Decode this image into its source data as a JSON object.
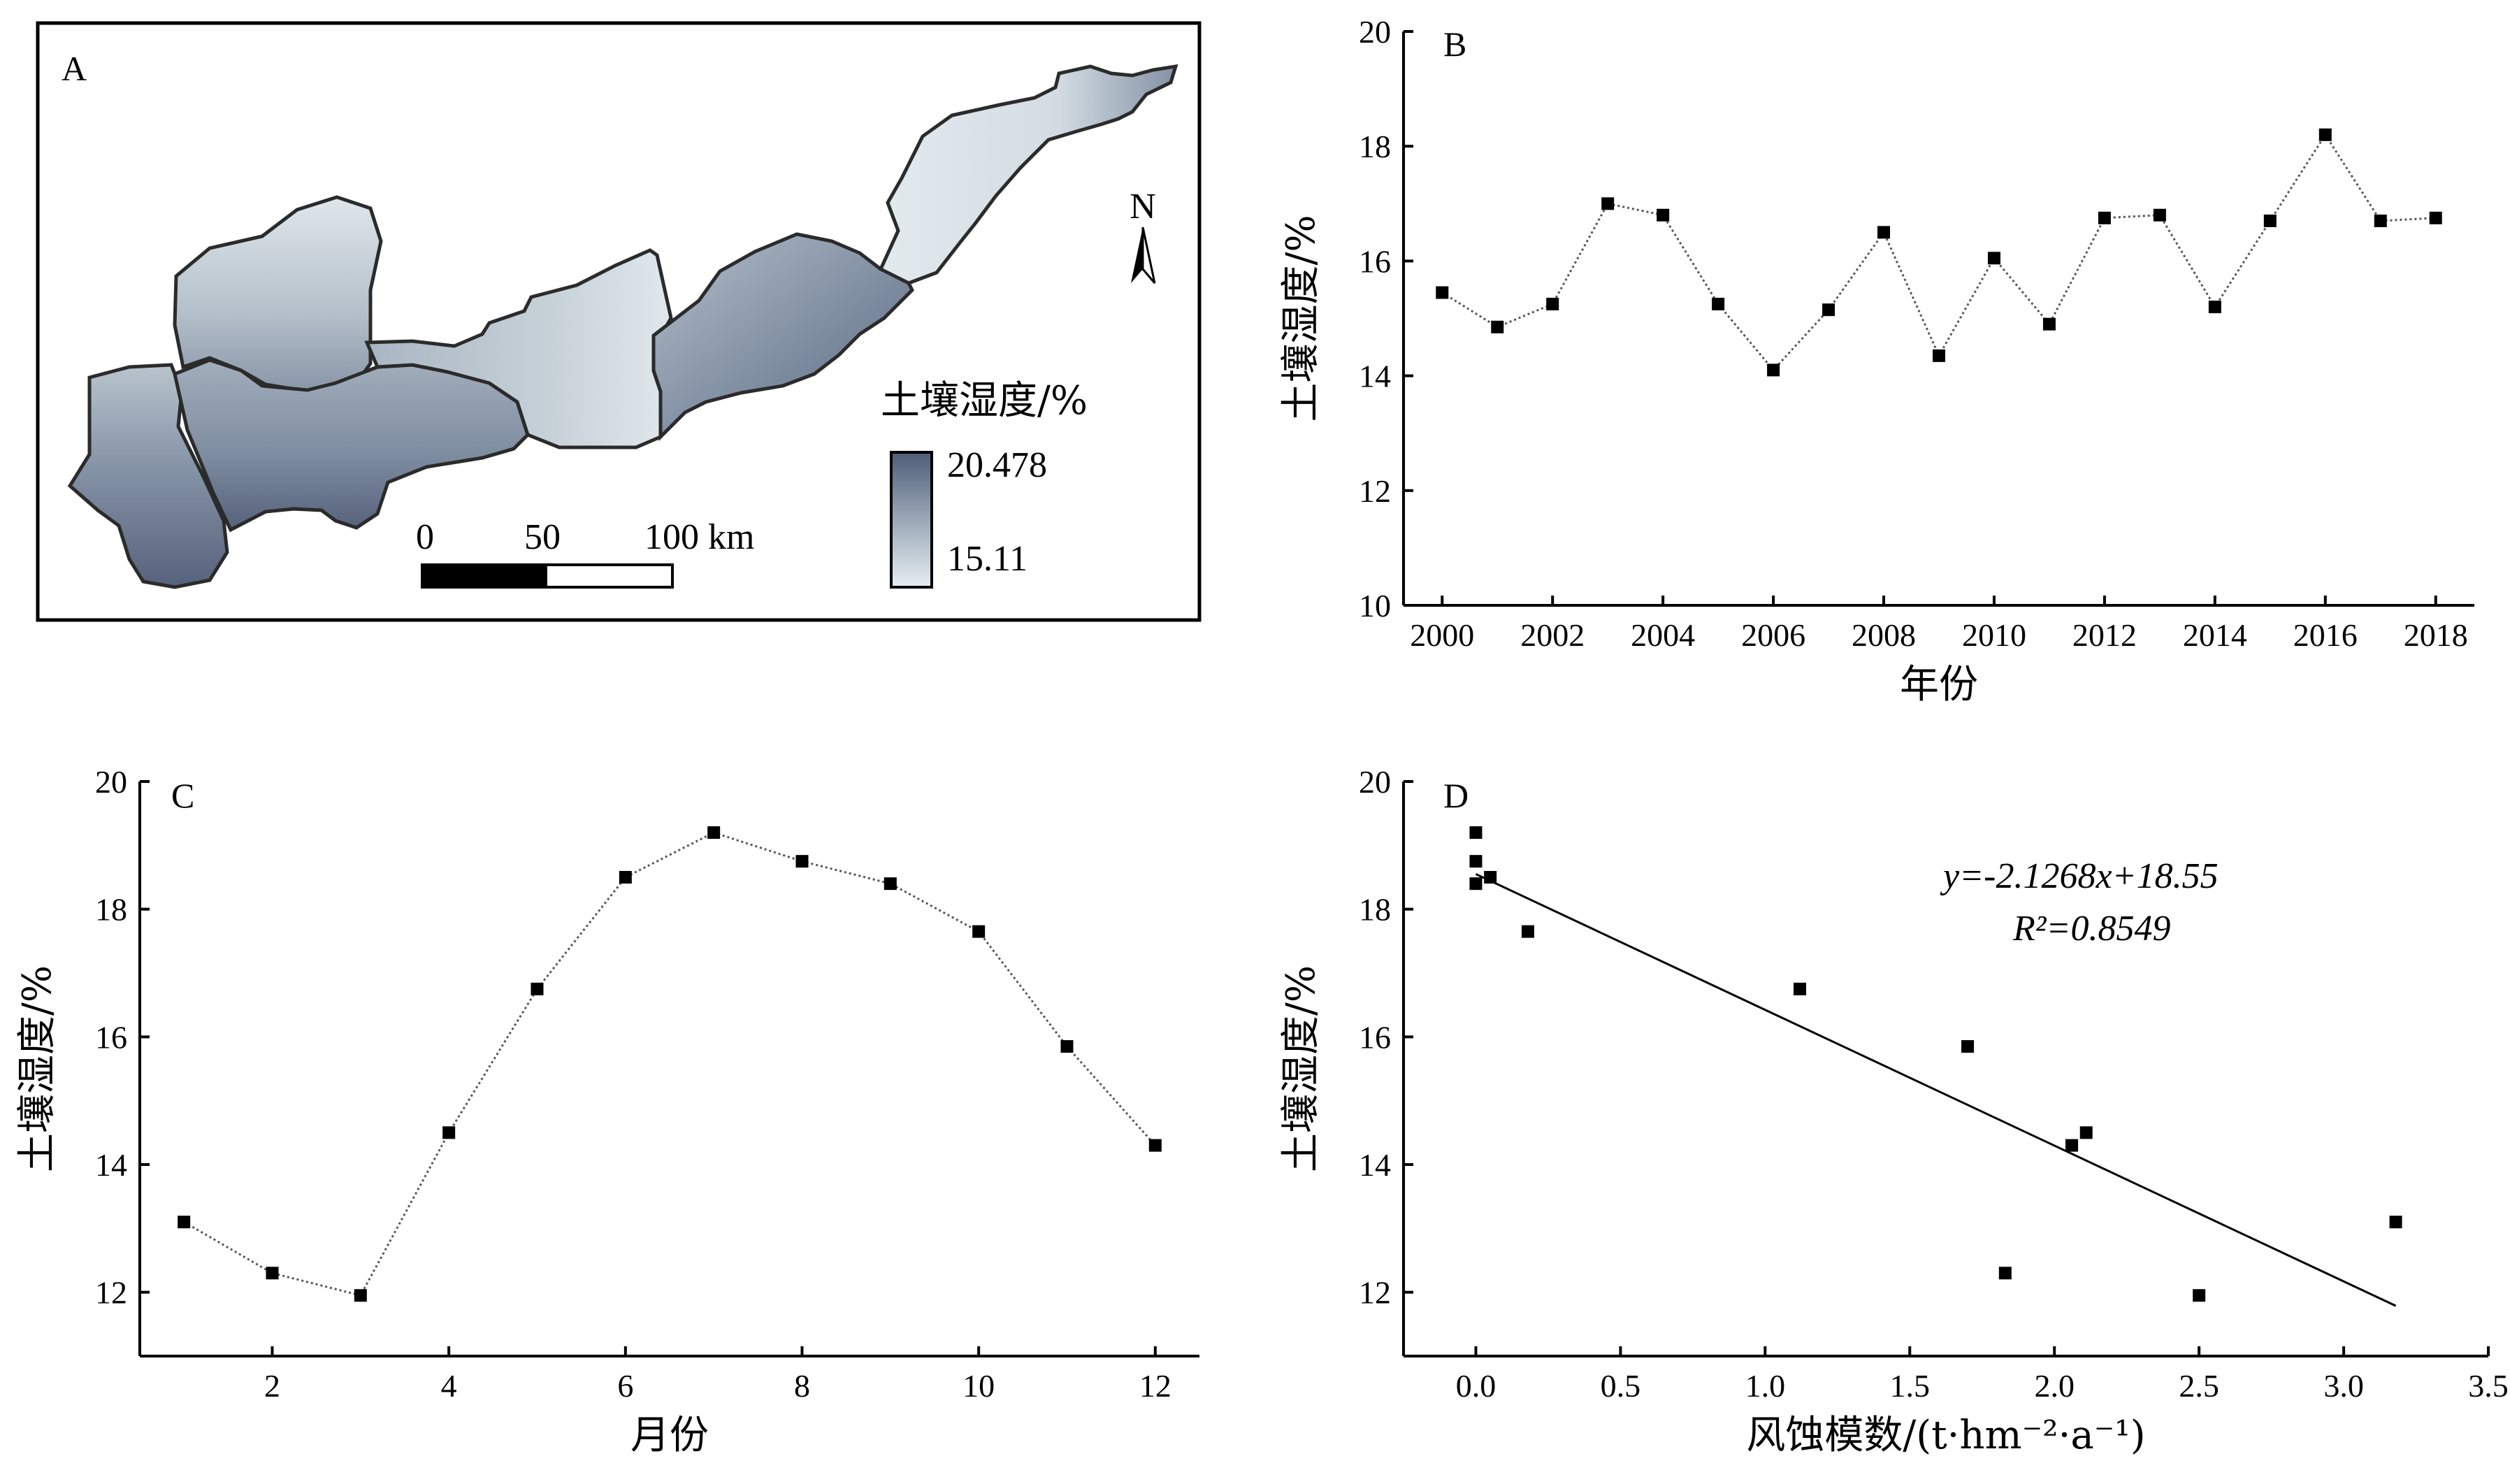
{
  "map": {
    "panel_label": "A",
    "legend_title": "土壤湿度/%",
    "legend_max": "20.478",
    "legend_min": "15.11",
    "scale_labels": [
      "0",
      "50",
      "100 km"
    ],
    "north_label": "N",
    "colors": {
      "high": "#4f5d78",
      "mid": "#9aa8b6",
      "low": "#e7eef2"
    }
  },
  "chart_data": [
    {
      "panel": "B",
      "type": "line",
      "xlabel": "年份",
      "ylabel": "土壤湿度/%",
      "xlim": [
        1999.3,
        2018.7
      ],
      "ylim": [
        10,
        20
      ],
      "xticks": [
        2000,
        2002,
        2004,
        2006,
        2008,
        2010,
        2012,
        2014,
        2016,
        2018
      ],
      "yticks": [
        10,
        12,
        14,
        16,
        18,
        20
      ],
      "x": [
        2000,
        2001,
        2002,
        2003,
        2004,
        2005,
        2006,
        2007,
        2008,
        2009,
        2010,
        2011,
        2012,
        2013,
        2014,
        2015,
        2016,
        2017,
        2018
      ],
      "y": [
        15.45,
        14.85,
        15.25,
        17.0,
        16.8,
        15.25,
        14.1,
        15.15,
        16.5,
        14.35,
        16.05,
        14.9,
        16.75,
        16.8,
        15.2,
        16.7,
        18.2,
        16.7,
        16.75
      ]
    },
    {
      "panel": "C",
      "type": "line",
      "xlabel": "月份",
      "ylabel": "土壤湿度/%",
      "xlim": [
        0.5,
        12.5
      ],
      "ylim": [
        11,
        20
      ],
      "xticks": [
        2,
        4,
        6,
        8,
        10,
        12
      ],
      "yticks": [
        12,
        14,
        16,
        18,
        20
      ],
      "x": [
        1,
        2,
        3,
        4,
        5,
        6,
        7,
        8,
        9,
        10,
        11,
        12
      ],
      "y": [
        13.1,
        12.3,
        11.95,
        14.5,
        16.75,
        18.5,
        19.2,
        18.75,
        18.4,
        17.65,
        15.85,
        14.3
      ]
    },
    {
      "panel": "D",
      "type": "scatter",
      "xlabel": "风蚀模数/(t·hm⁻²·a⁻¹)",
      "ylabel": "土壤湿度/%",
      "xlim": [
        -0.25,
        3.5
      ],
      "ylim": [
        11,
        20
      ],
      "xticks": [
        0.0,
        0.5,
        1.0,
        1.5,
        2.0,
        2.5,
        3.0,
        3.5
      ],
      "xtick_labels": [
        "0.0",
        "0.5",
        "1.0",
        "1.5",
        "2.0",
        "2.5",
        "3.0",
        "3.5"
      ],
      "yticks": [
        12,
        14,
        16,
        18,
        20
      ],
      "x": [
        0.0,
        0.0,
        0.0,
        0.05,
        0.18,
        1.12,
        1.7,
        1.83,
        2.06,
        2.11,
        2.5,
        3.18
      ],
      "y": [
        19.2,
        18.75,
        18.4,
        18.5,
        17.65,
        16.75,
        15.85,
        12.3,
        14.3,
        14.5,
        11.95,
        13.1
      ],
      "fit": {
        "slope": -2.1268,
        "intercept": 18.55,
        "x_range": [
          0.0,
          3.18
        ]
      },
      "equation": "y=-2.1268x+18.55",
      "r2": "R²=0.8549"
    }
  ]
}
